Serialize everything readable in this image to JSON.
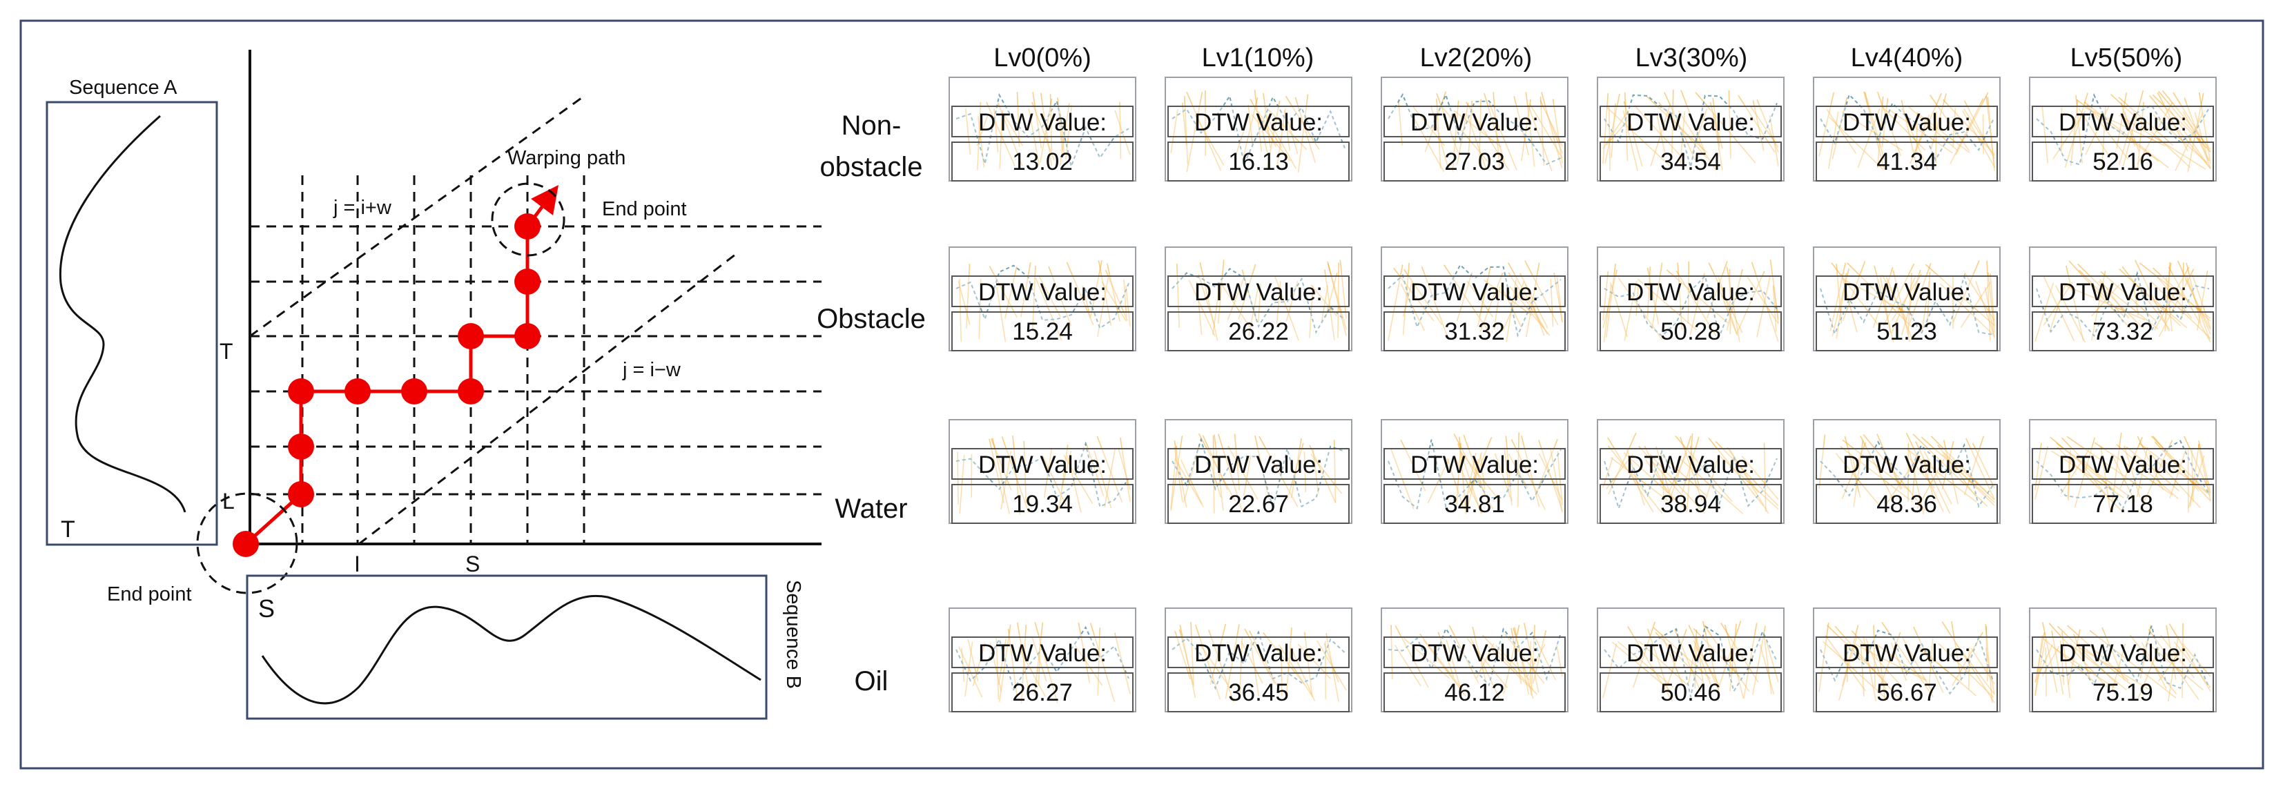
{
  "diagram": {
    "sequence_a_label": "Sequence A",
    "sequence_b_label": "Sequence B",
    "warping_path_label": "Warping path",
    "end_point_top": "End point",
    "end_point_bottom": "End point",
    "upper_band_label": "j = i+w",
    "lower_band_label": "j = i−w",
    "axis_t": "T",
    "axis_l": "L",
    "axis_i": "I",
    "axis_s": "S",
    "seq_a_corner": "T",
    "seq_b_corner": "S"
  },
  "grid": {
    "cell_title": "DTW Value:",
    "columns": [
      "Lv0(0%)",
      "Lv1(10%)",
      "Lv2(20%)",
      "Lv3(30%)",
      "Lv4(40%)",
      "Lv5(50%)"
    ],
    "rows": [
      {
        "label": "Non-\nobstacle",
        "values": [
          "13.02",
          "16.13",
          "27.03",
          "34.54",
          "41.34",
          "52.16"
        ]
      },
      {
        "label": "Obstacle",
        "values": [
          "15.24",
          "26.22",
          "31.32",
          "50.28",
          "51.23",
          "73.32"
        ]
      },
      {
        "label": "Water",
        "values": [
          "19.34",
          "22.67",
          "34.81",
          "38.94",
          "48.36",
          "77.18"
        ]
      },
      {
        "label": "Oil",
        "values": [
          "26.27",
          "36.45",
          "46.12",
          "50.46",
          "56.67",
          "75.19"
        ]
      }
    ]
  },
  "colors": {
    "path": "#ee0000",
    "border": "#3b4a6b",
    "warp_lines": "#f5a623",
    "series_line": "#6fa3b8"
  }
}
